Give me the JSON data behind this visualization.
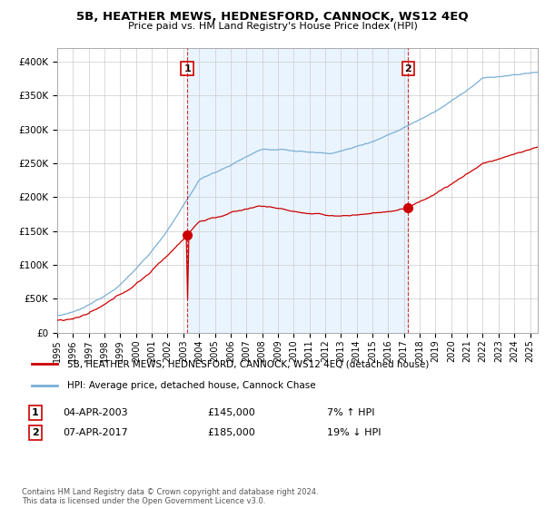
{
  "title": "5B, HEATHER MEWS, HEDNESFORD, CANNOCK, WS12 4EQ",
  "subtitle": "Price paid vs. HM Land Registry's House Price Index (HPI)",
  "ylabel_ticks": [
    "£0",
    "£50K",
    "£100K",
    "£150K",
    "£200K",
    "£250K",
    "£300K",
    "£350K",
    "£400K"
  ],
  "ytick_values": [
    0,
    50000,
    100000,
    150000,
    200000,
    250000,
    300000,
    350000,
    400000
  ],
  "ylim": [
    0,
    420000
  ],
  "xlim_start": 1995.0,
  "xlim_end": 2025.5,
  "transaction1": {
    "date_num": 2003.25,
    "price": 145000,
    "label": "1",
    "date_str": "04-APR-2003",
    "price_str": "£145,000",
    "pct_str": "7% ↑ HPI"
  },
  "transaction2": {
    "date_num": 2017.27,
    "price": 185000,
    "label": "2",
    "date_str": "07-APR-2017",
    "price_str": "£185,000",
    "pct_str": "19% ↓ HPI"
  },
  "line_color_property": "#cc0000",
  "line_color_hpi": "#7aafd4",
  "fill_color_between": "#ddeeff",
  "dashed_line_color": "#cc0000",
  "marker_color": "#cc0000",
  "background_color": "#ffffff",
  "grid_color": "#cccccc",
  "legend_label_property": "5B, HEATHER MEWS, HEDNESFORD, CANNOCK, WS12 4EQ (detached house)",
  "legend_label_hpi": "HPI: Average price, detached house, Cannock Chase",
  "footer": "Contains HM Land Registry data © Crown copyright and database right 2024.\nThis data is licensed under the Open Government Licence v3.0.",
  "xtick_years": [
    1995,
    1996,
    1997,
    1998,
    1999,
    2000,
    2001,
    2002,
    2003,
    2004,
    2005,
    2006,
    2007,
    2008,
    2009,
    2010,
    2011,
    2012,
    2013,
    2014,
    2015,
    2016,
    2017,
    2018,
    2019,
    2020,
    2021,
    2022,
    2023,
    2024,
    2025
  ]
}
